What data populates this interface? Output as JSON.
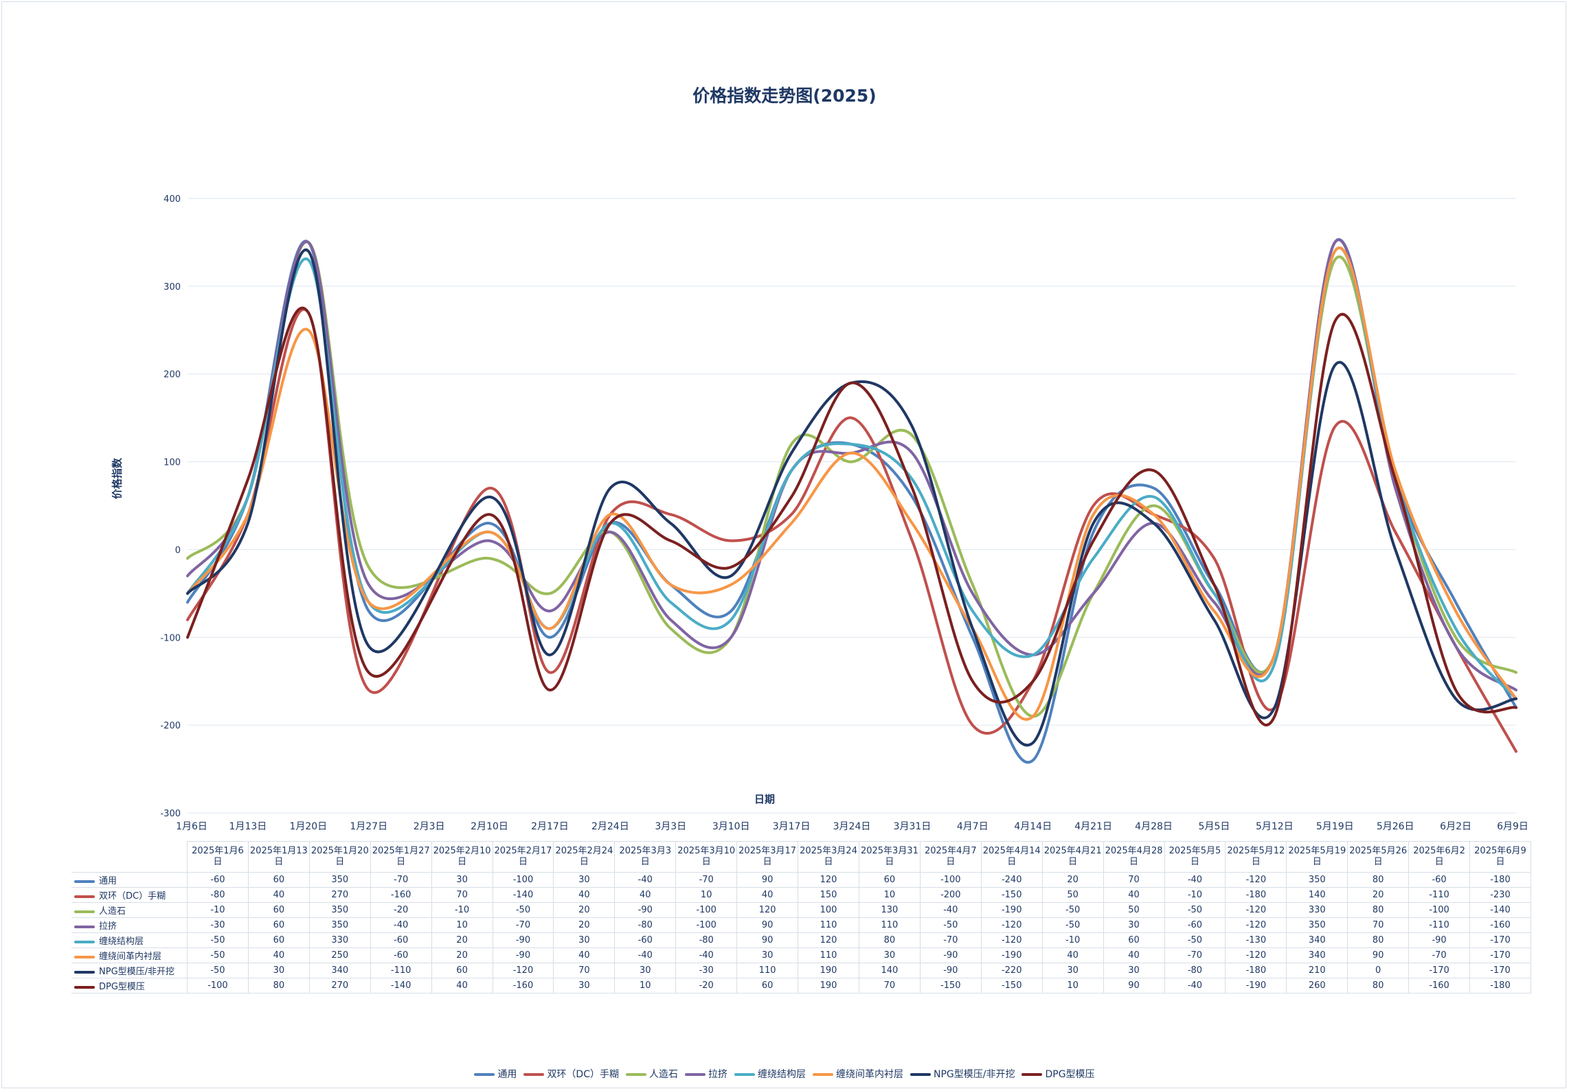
{
  "chart_data": {
    "type": "line",
    "title": "价格指数走势图(2025)",
    "xlabel": "日期",
    "ylabel": "价格指数",
    "ylim": [
      -300,
      400
    ],
    "yticks": [
      400,
      300,
      200,
      100,
      0,
      -100,
      -200,
      -300
    ],
    "grid": true,
    "legend_position": "bottom",
    "x_tick_labels": [
      "1月6日",
      "1月13日",
      "1月20日",
      "1月27日",
      "2月3日",
      "2月10日",
      "2月17日",
      "2月24日",
      "3月3日",
      "3月10日",
      "3月17日",
      "3月24日",
      "3月31日",
      "4月7日",
      "4月14日",
      "4月21日",
      "4月28日",
      "5月5日",
      "5月12日",
      "5月19日",
      "5月26日",
      "6月2日",
      "6月9日"
    ],
    "categories": [
      "2025年1月6日",
      "2025年1月13日",
      "2025年1月20日",
      "2025年1月27日",
      "2025年2月10日",
      "2025年2月17日",
      "2025年2月24日",
      "2025年3月3日",
      "2025年3月10日",
      "2025年3月17日",
      "2025年3月24日",
      "2025年3月31日",
      "2025年4月7日",
      "2025年4月14日",
      "2025年4月21日",
      "2025年4月28日",
      "2025年5月5日",
      "2025年5月12日",
      "2025年5月19日",
      "2025年5月26日",
      "2025年6月2日",
      "2025年6月9日"
    ],
    "category_x_index": [
      0,
      1,
      2,
      3,
      5,
      6,
      7,
      8,
      9,
      10,
      11,
      12,
      13,
      14,
      15,
      16,
      17,
      18,
      19,
      20,
      21,
      22
    ],
    "series": [
      {
        "name": "通用",
        "color": "#4f81bd",
        "values": [
          -60,
          60,
          350,
          -70,
          30,
          -100,
          30,
          -40,
          -70,
          90,
          120,
          60,
          -100,
          -240,
          20,
          70,
          -40,
          -120,
          350,
          80,
          -60,
          -180
        ]
      },
      {
        "name": "双环（DC）手糊",
        "color": "#c0504d",
        "values": [
          -80,
          40,
          270,
          -160,
          70,
          -140,
          40,
          40,
          10,
          40,
          150,
          10,
          -200,
          -150,
          50,
          40,
          -10,
          -180,
          140,
          20,
          -110,
          -230
        ]
      },
      {
        "name": "人造石",
        "color": "#9bbb59",
        "values": [
          -10,
          60,
          350,
          -20,
          -10,
          -50,
          20,
          -90,
          -100,
          120,
          100,
          130,
          -40,
          -190,
          -50,
          50,
          -50,
          -120,
          330,
          80,
          -100,
          -140
        ]
      },
      {
        "name": "拉挤",
        "color": "#8064a2",
        "values": [
          -30,
          60,
          350,
          -40,
          10,
          -70,
          20,
          -80,
          -100,
          90,
          110,
          110,
          -50,
          -120,
          -50,
          30,
          -60,
          -120,
          350,
          70,
          -110,
          -160
        ]
      },
      {
        "name": "缠绕结构层",
        "color": "#4bacc6",
        "values": [
          -50,
          60,
          330,
          -60,
          20,
          -90,
          30,
          -60,
          -80,
          90,
          120,
          80,
          -70,
          -120,
          -10,
          60,
          -50,
          -130,
          340,
          80,
          -90,
          -170
        ]
      },
      {
        "name": "缠绕间革内衬层",
        "color": "#f79646",
        "values": [
          -50,
          40,
          250,
          -60,
          20,
          -90,
          40,
          -40,
          -40,
          30,
          110,
          30,
          -90,
          -190,
          40,
          40,
          -70,
          -120,
          340,
          90,
          -70,
          -170
        ]
      },
      {
        "name": "NPG型模压/非开挖",
        "color": "#1f3864",
        "values": [
          -50,
          30,
          340,
          -110,
          60,
          -120,
          70,
          30,
          -30,
          110,
          190,
          140,
          -90,
          -220,
          30,
          30,
          -80,
          -180,
          210,
          0,
          -170,
          -170
        ]
      },
      {
        "name": "DPG型模压",
        "color": "#7b2020",
        "values": [
          -100,
          80,
          270,
          -140,
          40,
          -160,
          30,
          10,
          -20,
          60,
          190,
          70,
          -150,
          -150,
          10,
          90,
          -40,
          -190,
          260,
          80,
          -160,
          -180
        ]
      }
    ]
  }
}
